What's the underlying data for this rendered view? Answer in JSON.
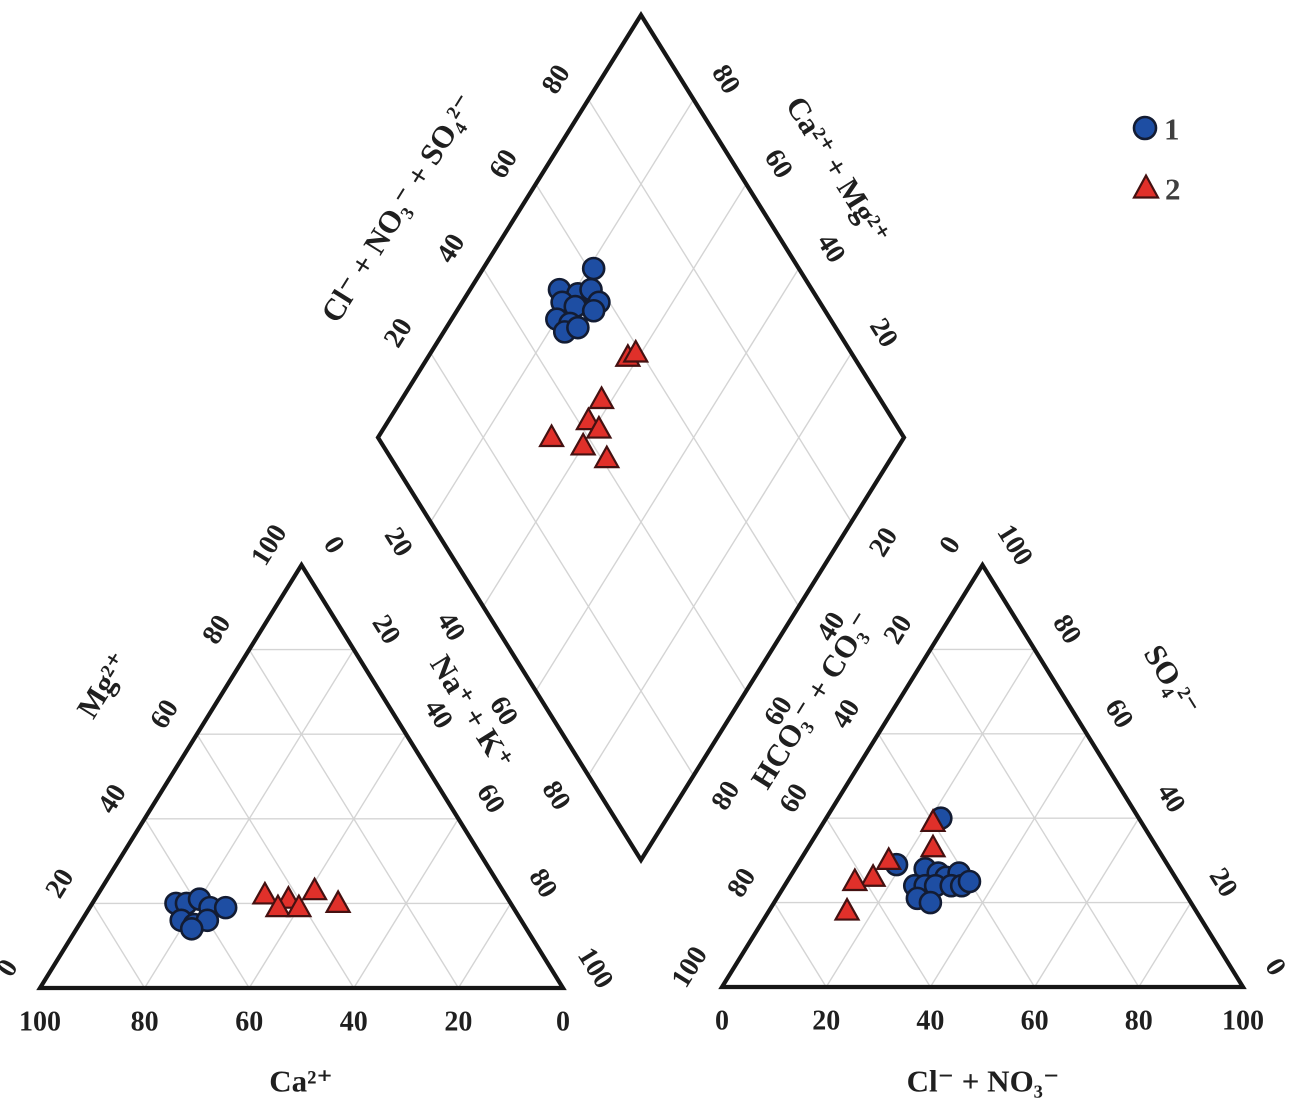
{
  "figure": {
    "background": "#ffffff"
  },
  "legend": {
    "items": [
      {
        "label": "1",
        "marker": "circle",
        "fill": "#1e4ea3",
        "stroke": "#131c33"
      },
      {
        "label": "2",
        "marker": "triangle",
        "fill": "#e0302a",
        "stroke": "#441111"
      }
    ]
  },
  "chart_data": {
    "type": "scatter",
    "subtype": "piper-trilinear-diagram",
    "grid": "on",
    "tick_step": 20,
    "axes": {
      "cation": {
        "bottom": {
          "label": "Ca²⁺",
          "ticks": [
            100,
            80,
            60,
            40,
            20,
            0
          ]
        },
        "left": {
          "label": "Mg²⁺",
          "ticks": [
            0,
            20,
            40,
            60,
            80,
            100
          ]
        },
        "right": {
          "label": "Na⁺ + K⁺",
          "ticks": [
            0,
            20,
            40,
            60,
            80,
            100
          ]
        }
      },
      "anion": {
        "bottom": {
          "label": "Cl⁻ +  NO₃⁻",
          "ticks": [
            0,
            20,
            40,
            60,
            80,
            100
          ]
        },
        "left": {
          "label": "HCO₃⁻ + CO₃⁻",
          "ticks": [
            100,
            80,
            60,
            40,
            20,
            0
          ]
        },
        "right": {
          "label": "SO₄²⁻",
          "ticks": [
            100,
            80,
            60,
            40,
            20,
            0
          ]
        }
      },
      "diamond": {
        "upper_left": {
          "label": "Cl⁻ + NO₃⁻ + SO₄²⁻",
          "ticks": [
            20,
            40,
            60,
            80
          ]
        },
        "upper_right": {
          "label": "Ca²⁺ + Mg²⁺",
          "ticks": [
            80,
            60,
            40,
            20
          ]
        },
        "lower_left": {
          "label": "",
          "ticks": [
            20,
            40,
            60,
            80
          ]
        },
        "lower_right": {
          "label": "",
          "ticks": [
            20,
            40,
            60,
            80
          ]
        }
      }
    },
    "series": [
      {
        "name": "1",
        "marker": "circle",
        "fill": "#1e4ea3",
        "stroke": "#131c33",
        "cation_points": [
          {
            "ca": 64,
            "mg": 20,
            "nak": 16
          },
          {
            "ca": 62,
            "mg": 20,
            "nak": 18
          },
          {
            "ca": 59,
            "mg": 21,
            "nak": 20
          },
          {
            "ca": 58,
            "mg": 19,
            "nak": 23
          },
          {
            "ca": 55,
            "mg": 19,
            "nak": 26
          },
          {
            "ca": 65,
            "mg": 16,
            "nak": 19
          },
          {
            "ca": 63,
            "mg": 15,
            "nak": 22
          },
          {
            "ca": 60,
            "mg": 16,
            "nak": 24
          },
          {
            "ca": 64,
            "mg": 14,
            "nak": 22
          }
        ],
        "anion_points": [
          {
            "cl": 22,
            "so4": 40,
            "hco3": 38
          },
          {
            "cl": 19,
            "so4": 29,
            "hco3": 52
          },
          {
            "cl": 25,
            "so4": 28,
            "hco3": 47
          },
          {
            "cl": 28,
            "so4": 27,
            "hco3": 45
          },
          {
            "cl": 30,
            "so4": 26,
            "hco3": 44
          },
          {
            "cl": 32,
            "so4": 27,
            "hco3": 41
          },
          {
            "cl": 25,
            "so4": 24,
            "hco3": 51
          },
          {
            "cl": 27,
            "so4": 24,
            "hco3": 49
          },
          {
            "cl": 29,
            "so4": 24,
            "hco3": 47
          },
          {
            "cl": 32,
            "so4": 24,
            "hco3": 44
          },
          {
            "cl": 34,
            "so4": 24,
            "hco3": 42
          },
          {
            "cl": 27,
            "so4": 21,
            "hco3": 52
          },
          {
            "cl": 30,
            "so4": 20,
            "hco3": 50
          },
          {
            "cl": 35,
            "so4": 25,
            "hco3": 40
          }
        ],
        "diamond_points": [
          {
            "ca_mg": 79,
            "cl_no3_so4": 61
          },
          {
            "ca_mg": 83,
            "cl_no3_so4": 52
          },
          {
            "ca_mg": 79,
            "cl_no3_so4": 55
          },
          {
            "ca_mg": 77,
            "cl_no3_so4": 58
          },
          {
            "ca_mg": 74,
            "cl_no3_so4": 58
          },
          {
            "ca_mg": 81,
            "cl_no3_so4": 51
          },
          {
            "ca_mg": 78,
            "cl_no3_so4": 53
          },
          {
            "ca_mg": 74,
            "cl_no3_so4": 56
          },
          {
            "ca_mg": 80,
            "cl_no3_so4": 48
          },
          {
            "ca_mg": 77,
            "cl_no3_so4": 50
          },
          {
            "ca_mg": 77,
            "cl_no3_so4": 48
          },
          {
            "ca_mg": 75,
            "cl_no3_so4": 51
          }
        ]
      },
      {
        "name": "2",
        "marker": "triangle",
        "fill": "#e0302a",
        "stroke": "#441111",
        "cation_points": [
          {
            "ca": 46,
            "mg": 22,
            "nak": 32
          },
          {
            "ca": 42,
            "mg": 21,
            "nak": 37
          },
          {
            "ca": 45,
            "mg": 19,
            "nak": 36
          },
          {
            "ca": 41,
            "mg": 19,
            "nak": 40
          },
          {
            "ca": 36,
            "mg": 23,
            "nak": 41
          },
          {
            "ca": 33,
            "mg": 20,
            "nak": 47
          }
        ],
        "anion_points": [
          {
            "cl": 21,
            "so4": 39,
            "hco3": 40
          },
          {
            "cl": 24,
            "so4": 33,
            "hco3": 43
          },
          {
            "cl": 17,
            "so4": 30,
            "hco3": 53
          },
          {
            "cl": 16,
            "so4": 26,
            "hco3": 58
          },
          {
            "cl": 13,
            "so4": 25,
            "hco3": 62
          },
          {
            "cl": 15,
            "so4": 18,
            "hco3": 67
          }
        ],
        "diamond_points": [
          {
            "ca_mg": 62,
            "cl_no3_so4": 57
          },
          {
            "ca_mg": 61,
            "cl_no3_so4": 59
          },
          {
            "ca_mg": 62,
            "cl_no3_so4": 47
          },
          {
            "ca_mg": 62,
            "cl_no3_so4": 42
          },
          {
            "ca_mg": 67,
            "cl_no3_so4": 33
          },
          {
            "ca_mg": 59,
            "cl_no3_so4": 43
          },
          {
            "ca_mg": 60,
            "cl_no3_so4": 38
          },
          {
            "ca_mg": 54,
            "cl_no3_so4": 41
          }
        ]
      }
    ],
    "style": {
      "outline_color": "#161616",
      "grid_color": "#d4d4d4",
      "text_color": "#1f1f1f"
    }
  }
}
